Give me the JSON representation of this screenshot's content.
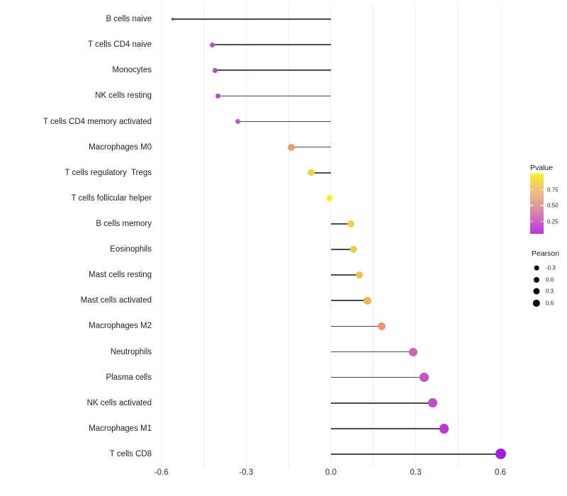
{
  "chart_data": {
    "type": "lollipop",
    "orientation": "horizontal",
    "title": "",
    "xlabel": "",
    "ylabel": "",
    "xlim": [
      -0.617,
      0.66
    ],
    "grid": "vertical-only",
    "gridline_values": [
      -0.6,
      -0.45,
      -0.3,
      -0.15,
      0,
      0.15,
      0.3,
      0.45,
      0.6
    ],
    "x_ticks": [
      {
        "value": -0.6,
        "label": "-0.6"
      },
      {
        "value": -0.3,
        "label": "-0.3"
      },
      {
        "value": 0.0,
        "label": "0.0"
      },
      {
        "value": 0.3,
        "label": "0.3"
      },
      {
        "value": 0.6,
        "label": "0.6"
      }
    ],
    "baseline_value": 0,
    "points": [
      {
        "label": "B cells naive",
        "pearson": -0.56,
        "dot_color": "#8e2ad8",
        "dot_size_px": 3.4
      },
      {
        "label": "T cells CD4 naive",
        "pearson": -0.42,
        "dot_color": "#b450cb",
        "dot_size_px": 6.8
      },
      {
        "label": "Monocytes",
        "pearson": -0.41,
        "dot_color": "#b24ecd",
        "dot_size_px": 6.8
      },
      {
        "label": "NK cells resting",
        "pearson": -0.4,
        "dot_color": "#b24fce",
        "dot_size_px": 6.8
      },
      {
        "label": "T cells CD4 memory activated",
        "pearson": -0.33,
        "dot_color": "#bd58c2",
        "dot_size_px": 7.0
      },
      {
        "label": "Macrophages M0",
        "pearson": -0.14,
        "dot_color": "#e7a36c",
        "dot_size_px": 10.0
      },
      {
        "label": "T cells regulatory  Tregs",
        "pearson": -0.07,
        "dot_color": "#ecd247",
        "dot_size_px": 9.3
      },
      {
        "label": "T cells follicular helper",
        "pearson": -0.005,
        "dot_color": "#f8f414",
        "dot_size_px": 8.8
      },
      {
        "label": "B cells memory",
        "pearson": 0.07,
        "dot_color": "#eecd52",
        "dot_size_px": 10.0
      },
      {
        "label": "Eosinophils",
        "pearson": 0.08,
        "dot_color": "#eccb52",
        "dot_size_px": 10.0
      },
      {
        "label": "Mast cells resting",
        "pearson": 0.1,
        "dot_color": "#ecc353",
        "dot_size_px": 10.0
      },
      {
        "label": "Mast cells activated",
        "pearson": 0.13,
        "dot_color": "#eab854",
        "dot_size_px": 10.6
      },
      {
        "label": "Macrophages M2",
        "pearson": 0.18,
        "dot_color": "#e99870",
        "dot_size_px": 11.4
      },
      {
        "label": "Neutrophils",
        "pearson": 0.29,
        "dot_color": "#ca67ab",
        "dot_size_px": 12.0
      },
      {
        "label": "Plasma cells",
        "pearson": 0.33,
        "dot_color": "#c355c1",
        "dot_size_px": 12.4
      },
      {
        "label": "NK cells activated",
        "pearson": 0.36,
        "dot_color": "#c04ec6",
        "dot_size_px": 12.7
      },
      {
        "label": "Macrophages M1",
        "pearson": 0.4,
        "dot_color": "#b83bd4",
        "dot_size_px": 13.4
      },
      {
        "label": "T cells CD8",
        "pearson": 0.6,
        "dot_color": "#a21ee3",
        "dot_size_px": 15.0
      }
    ],
    "legend": {
      "pvalue": {
        "title": "Pvalue",
        "position": "right",
        "gradient_top_color": "#f9f21e",
        "gradient_bottom_color": "#b835e2",
        "bar_range": [
          0.05,
          1.0
        ],
        "ticks": [
          {
            "label": "0.75",
            "frac_from_top": 0.265
          },
          {
            "label": "0.50",
            "frac_from_top": 0.53
          },
          {
            "label": "0.25",
            "frac_from_top": 0.795
          }
        ]
      },
      "pearson": {
        "title": "Pearson",
        "position": "right",
        "items": [
          {
            "label": "-0.3",
            "dot_size_px": 6.7
          },
          {
            "label": "0.0",
            "dot_size_px": 8.0
          },
          {
            "label": "0.3",
            "dot_size_px": 9.0
          },
          {
            "label": "0.6",
            "dot_size_px": 10.3
          }
        ]
      }
    },
    "style": {
      "stem_color": "#4b4b4b",
      "gridline_color": "#ededed",
      "background_color": "#ffffff",
      "axis_text_color": "#2e2e2e"
    }
  }
}
